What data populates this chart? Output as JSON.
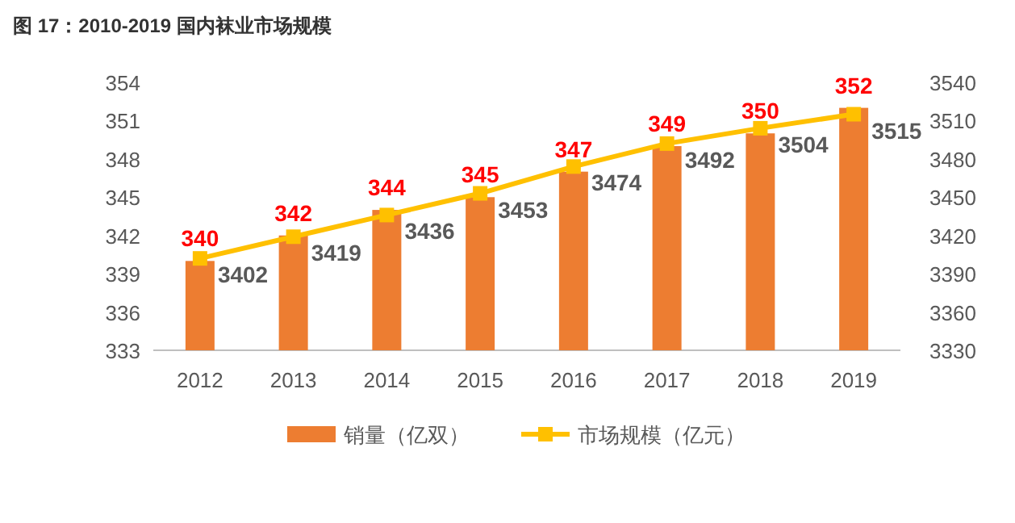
{
  "chart_data": {
    "type": "bar",
    "title": "图 17：2010-2019 国内袜业市场规模",
    "categories": [
      "2012",
      "2013",
      "2014",
      "2015",
      "2016",
      "2017",
      "2018",
      "2019"
    ],
    "series": [
      {
        "name": "销量（亿双）",
        "color": "#ed7d31",
        "values": [
          340,
          342,
          344,
          345,
          347,
          349,
          350,
          352
        ]
      },
      {
        "name": "市场规模（亿元）",
        "type": "line",
        "axis": "y2",
        "color": "#ffc000",
        "values": [
          3402,
          3419,
          3436,
          3453,
          3474,
          3492,
          3504,
          3515
        ]
      }
    ],
    "ylim": [
      333,
      354
    ],
    "yticks": [
      333,
      336,
      339,
      342,
      345,
      348,
      351,
      354
    ],
    "y2lim": [
      3330,
      3540
    ],
    "y2ticks": [
      3330,
      3360,
      3390,
      3420,
      3450,
      3480,
      3510,
      3540
    ],
    "marker": "square",
    "data_labels": true,
    "legend": "bottom",
    "grid": false
  }
}
